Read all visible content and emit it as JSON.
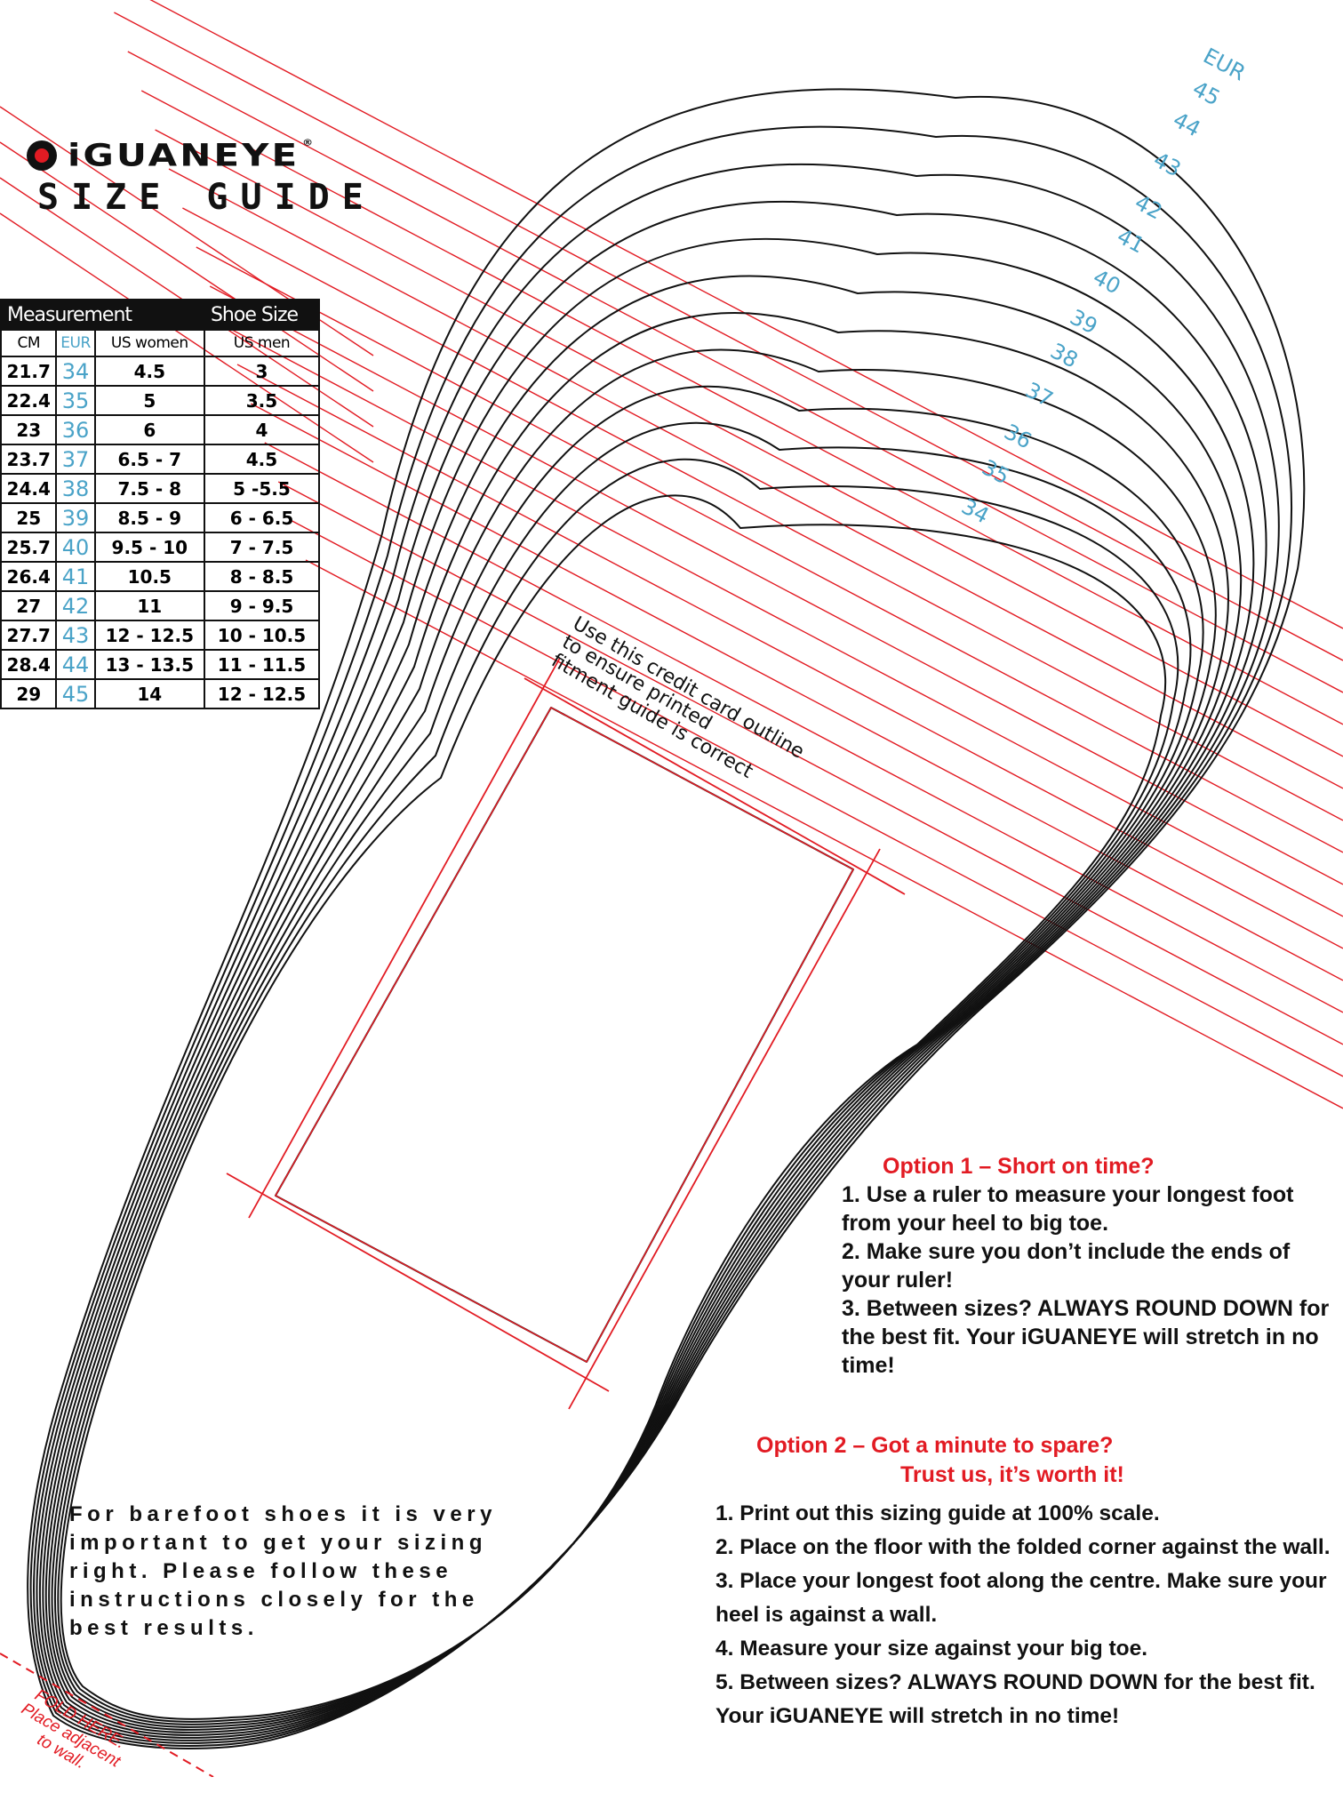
{
  "brand": {
    "name": "iGUANEYE",
    "registered": "®",
    "subtitle": "SIZE GUIDE"
  },
  "table": {
    "group_headers": [
      "Measurement",
      "Shoe Size"
    ],
    "columns": [
      "CM",
      "EUR",
      "US women",
      "US men"
    ],
    "rows": [
      [
        "21.7",
        "34",
        "4.5",
        "3"
      ],
      [
        "22.4",
        "35",
        "5",
        "3.5"
      ],
      [
        "23",
        "36",
        "6",
        "4"
      ],
      [
        "23.7",
        "37",
        "6.5 - 7",
        "4.5"
      ],
      [
        "24.4",
        "38",
        "7.5 - 8",
        "5 -5.5"
      ],
      [
        "25",
        "39",
        "8.5 - 9",
        "6 - 6.5"
      ],
      [
        "25.7",
        "40",
        "9.5 - 10",
        "7 - 7.5"
      ],
      [
        "26.4",
        "41",
        "10.5",
        "8 - 8.5"
      ],
      [
        "27",
        "42",
        "11",
        "9 - 9.5"
      ],
      [
        "27.7",
        "43",
        "12 - 12.5",
        "10 - 10.5"
      ],
      [
        "28.4",
        "44",
        "13 - 13.5",
        "11 - 11.5"
      ],
      [
        "29",
        "45",
        "14",
        "12 - 12.5"
      ]
    ]
  },
  "outline_labels": {
    "unit": "EUR",
    "sizes": [
      "45",
      "44",
      "43",
      "42",
      "41",
      "40",
      "39",
      "38",
      "37",
      "36",
      "35",
      "34"
    ]
  },
  "card_note": [
    "Use this credit card outline",
    "to ensure printed",
    "fitment guide is correct"
  ],
  "option1": {
    "title": "Option 1 – Short on time?",
    "steps": [
      "1. Use a ruler to measure your longest foot from your heel to big toe.",
      "2. Make sure you don’t include the ends of your ruler!",
      "3. Between sizes? ALWAYS ROUND DOWN for the best fit. Your iGUANEYE will stretch in no time!"
    ]
  },
  "option2": {
    "title": "Option 2 –  Got a minute to spare?",
    "title2": "Trust us, it’s worth it!",
    "steps": [
      "1. Print out this sizing guide at 100% scale.",
      "2. Place on the floor with the folded corner against the wall.",
      "3. Place your longest foot along the centre. Make sure your heel is against a wall.",
      "4. Measure your size against your big toe.",
      "5. Between sizes? ALWAYS ROUND DOWN for the best fit. Your iGUANEYE will stretch in no time!"
    ]
  },
  "barefoot_note": "For barefoot shoes it is very important to get your sizing right. Please follow these instructions closely for the best results.",
  "fold_note": [
    "FOLD HERE.",
    "Place adjacent",
    "to wall."
  ],
  "colors": {
    "red": "#e21b23",
    "eur_blue": "#4aa3c8",
    "ink": "#111111"
  }
}
